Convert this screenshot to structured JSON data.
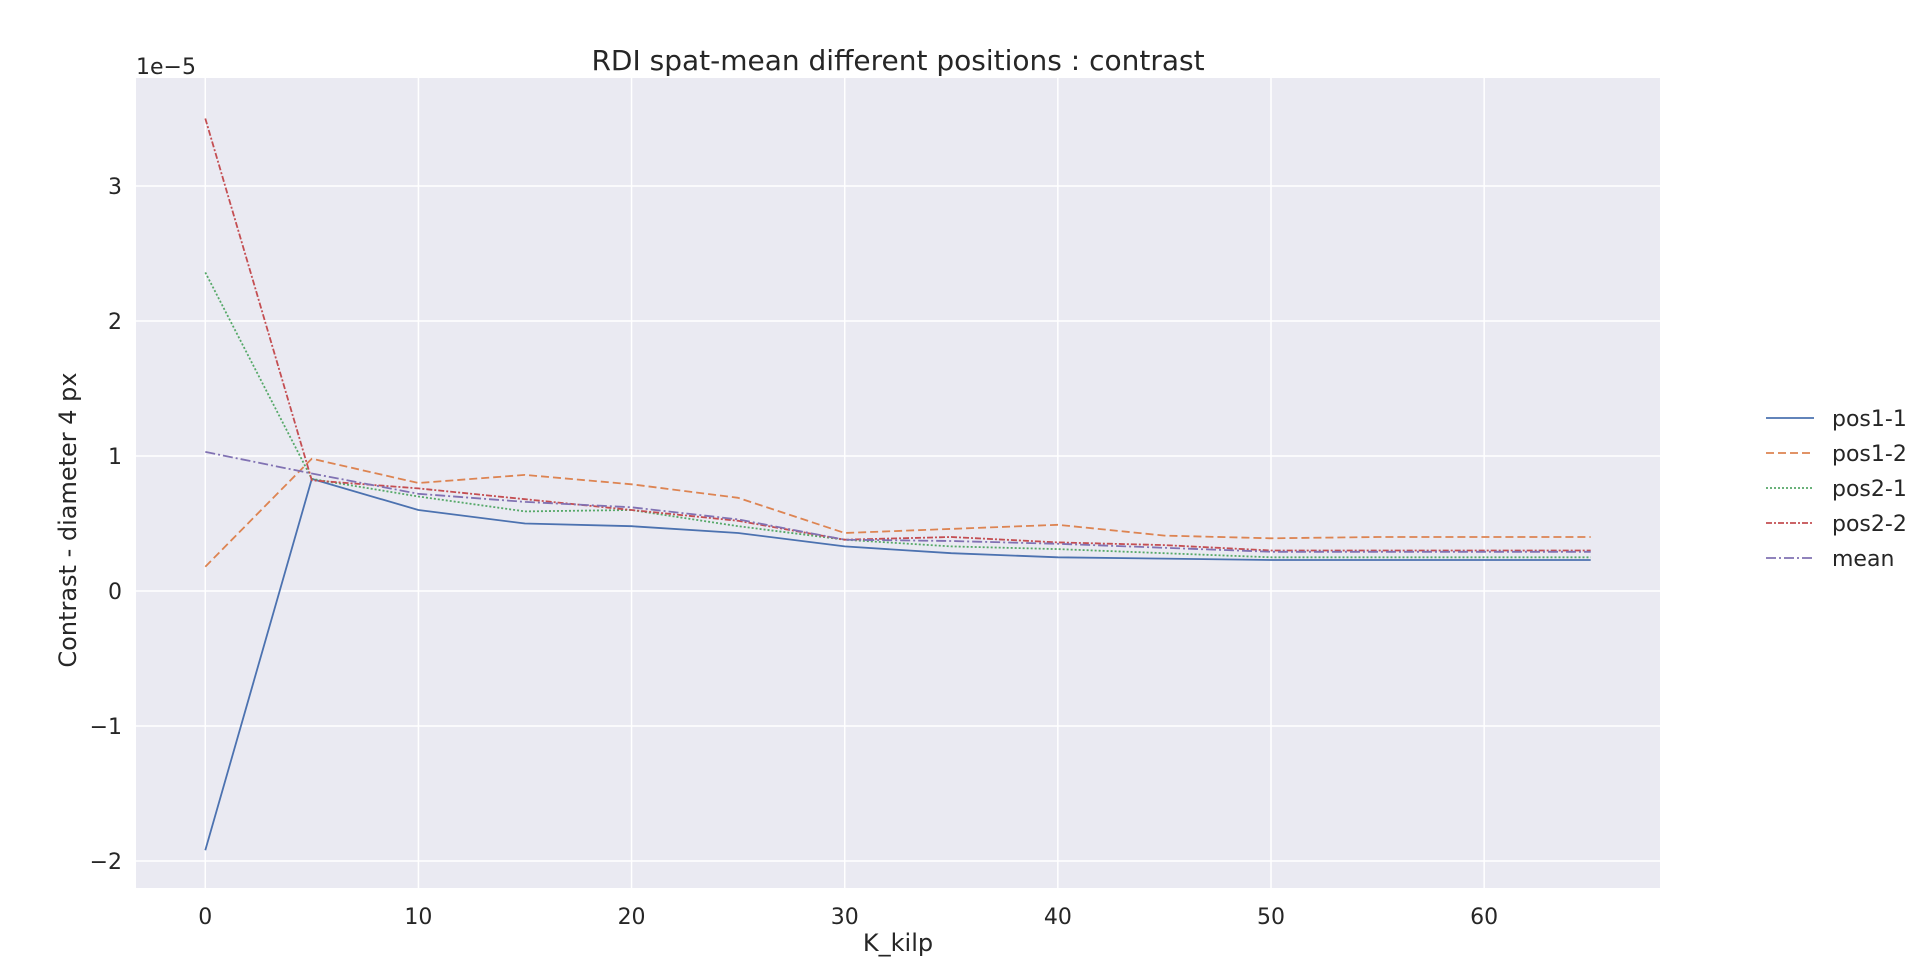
{
  "chart_data": {
    "type": "line",
    "title": "RDI spat-mean different positions : contrast",
    "xlabel": "K_kilp",
    "ylabel": "Contrast - diameter 4 px",
    "y_offset_label": "1e−5",
    "xlim": [
      -3.25,
      68.25
    ],
    "ylim": [
      -2.2,
      3.8
    ],
    "xticks": [
      0,
      10,
      20,
      30,
      40,
      50,
      60
    ],
    "xtick_labels": [
      "0",
      "10",
      "20",
      "30",
      "40",
      "50",
      "60"
    ],
    "yticks": [
      -2,
      -1,
      0,
      1,
      2,
      3
    ],
    "ytick_labels": [
      "−2",
      "−1",
      "0",
      "1",
      "2",
      "3"
    ],
    "grid": true,
    "background": "#eaeaf2",
    "legend_position": "right",
    "x": [
      0,
      5,
      10,
      15,
      20,
      25,
      30,
      35,
      40,
      45,
      50,
      55,
      60,
      65
    ],
    "series": [
      {
        "name": "pos1-1",
        "color": "#4c72b0",
        "dash": "",
        "values": [
          -1.92,
          0.83,
          0.6,
          0.5,
          0.48,
          0.43,
          0.33,
          0.28,
          0.25,
          0.24,
          0.23,
          0.23,
          0.23,
          0.23
        ]
      },
      {
        "name": "pos1-2",
        "color": "#dd8452",
        "dash": "8,4",
        "values": [
          0.18,
          0.98,
          0.8,
          0.86,
          0.79,
          0.69,
          0.43,
          0.46,
          0.49,
          0.41,
          0.39,
          0.4,
          0.4,
          0.4
        ]
      },
      {
        "name": "pos2-1",
        "color": "#55a868",
        "dash": "2,2",
        "values": [
          2.36,
          0.83,
          0.7,
          0.59,
          0.6,
          0.48,
          0.38,
          0.33,
          0.31,
          0.28,
          0.25,
          0.25,
          0.25,
          0.25
        ]
      },
      {
        "name": "pos2-2",
        "color": "#c44e52",
        "dash": "6,2,2,2",
        "values": [
          3.5,
          0.82,
          0.76,
          0.68,
          0.6,
          0.52,
          0.38,
          0.4,
          0.36,
          0.34,
          0.3,
          0.3,
          0.3,
          0.3
        ]
      },
      {
        "name": "mean",
        "color": "#8172b3",
        "dash": "10,3,2,3",
        "values": [
          1.03,
          0.87,
          0.72,
          0.66,
          0.62,
          0.53,
          0.38,
          0.37,
          0.35,
          0.32,
          0.29,
          0.29,
          0.29,
          0.29
        ]
      }
    ]
  }
}
